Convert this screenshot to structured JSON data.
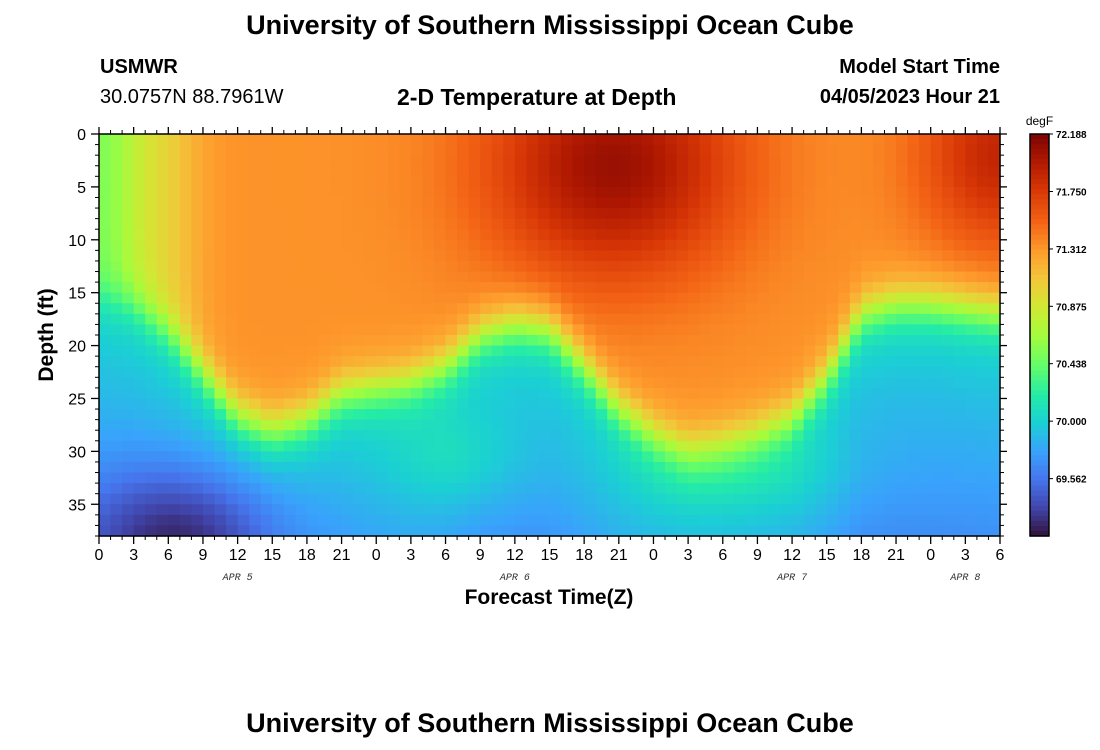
{
  "header": {
    "title": "University of Southern Mississippi Ocean Cube",
    "station": "USMWR",
    "coords": "30.0757N  88.7961W",
    "subtitle": "2-D Temperature at Depth",
    "model_label": "Model Start Time",
    "model_time": "04/05/2023 Hour 21"
  },
  "footer": {
    "title": "University of Southern Mississippi Ocean Cube"
  },
  "chart_data": {
    "type": "heatmap",
    "title": "2-D Temperature at Depth",
    "xlabel": "Forecast Time(Z)",
    "ylabel": "Depth (ft)",
    "x_tick_labels": [
      "0",
      "3",
      "6",
      "9",
      "12",
      "15",
      "18",
      "21",
      "0",
      "3",
      "6",
      "9",
      "12",
      "15",
      "18",
      "21",
      "0",
      "3",
      "6",
      "9",
      "12",
      "15",
      "18",
      "21",
      "0",
      "3",
      "6"
    ],
    "x_range_hours": [
      0,
      78
    ],
    "date_labels": [
      {
        "label": "APR 5",
        "hour": 12
      },
      {
        "label": "APR 6",
        "hour": 36
      },
      {
        "label": "APR 7",
        "hour": 60
      },
      {
        "label": "APR 8",
        "hour": 75
      }
    ],
    "y_ticks": [
      0,
      5,
      10,
      15,
      20,
      25,
      30,
      35
    ],
    "y_range_ft": [
      0,
      38
    ],
    "colorbar": {
      "unit": "degF",
      "min": 69.125,
      "max": 72.188,
      "ticks": [
        "72.188",
        "71.750",
        "71.312",
        "70.875",
        "70.438",
        "70.000",
        "69.562"
      ]
    },
    "thermocline_depth_ft": {
      "hours": [
        0,
        3,
        6,
        9,
        12,
        15,
        18,
        21,
        24,
        27,
        30,
        33,
        36,
        39,
        42,
        45,
        48,
        51,
        54,
        57,
        60,
        63,
        66,
        69,
        72,
        75,
        78
      ],
      "depth": [
        15,
        16,
        18.5,
        22.5,
        26.5,
        28,
        27,
        24.5,
        24,
        23.5,
        22,
        19,
        18,
        18.5,
        22,
        26,
        28.5,
        30,
        29.5,
        28.5,
        27,
        23,
        17,
        16,
        16,
        16.5,
        17
      ]
    },
    "surface_peak": {
      "hour": 44.5,
      "depth_ft": 3,
      "value_degF": 72.188
    },
    "bottom_min": {
      "hour": 8,
      "depth_ft": 38,
      "value_degF": 69.125
    }
  }
}
